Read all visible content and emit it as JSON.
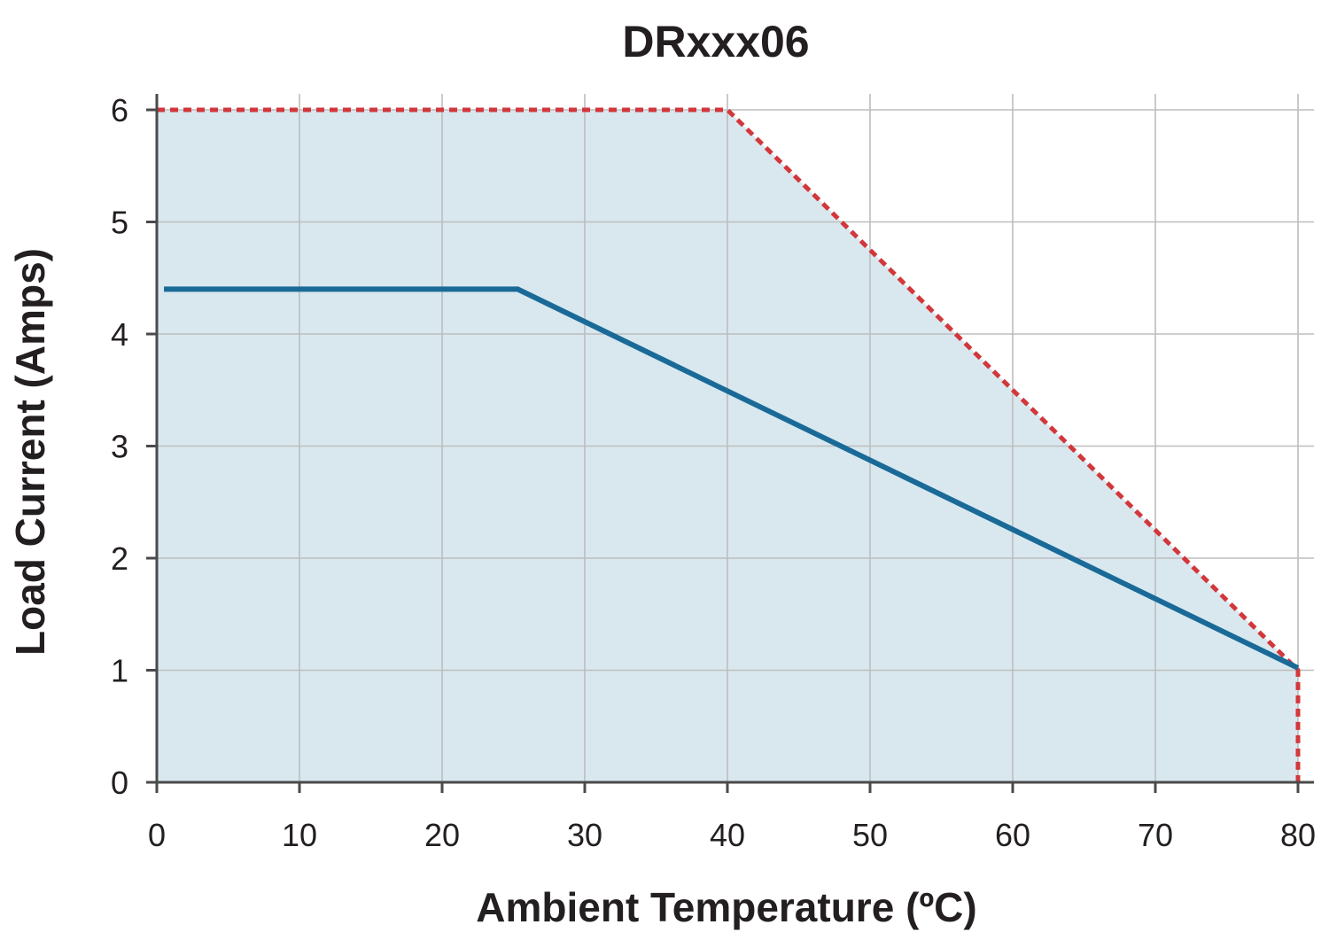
{
  "chart_data": {
    "type": "line",
    "title": "DRxxx06",
    "xlabel": "Ambient Temperature (ºC)",
    "ylabel": "Load Current (Amps)",
    "xlim": [
      0,
      80
    ],
    "ylim": [
      0,
      6
    ],
    "xticks": [
      "0",
      "10",
      "20",
      "30",
      "40",
      "50",
      "60",
      "70",
      "80"
    ],
    "yticks": [
      "0",
      "1",
      "2",
      "3",
      "4",
      "5",
      "6"
    ],
    "grid": true,
    "legend": "none",
    "shaded_region": {
      "color": "#d9e8ef",
      "points": [
        [
          0,
          0
        ],
        [
          0,
          6
        ],
        [
          40,
          6
        ],
        [
          80,
          1
        ],
        [
          80,
          0
        ]
      ]
    },
    "series": [
      {
        "style": "dashed",
        "color": "#d2373b",
        "x": [
          0,
          40,
          80,
          80
        ],
        "y": [
          6,
          6,
          1,
          0
        ]
      },
      {
        "style": "solid",
        "color": "#1a6a98",
        "x": [
          0.5,
          25.3,
          80
        ],
        "y": [
          4.4,
          4.4,
          1.02
        ]
      }
    ]
  }
}
